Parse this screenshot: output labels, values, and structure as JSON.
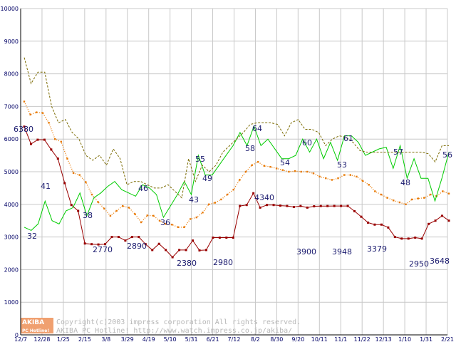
{
  "chart_data": {
    "type": "line",
    "title": "",
    "xlabel": "",
    "ylabel": "",
    "ylim": [
      0,
      10000
    ],
    "yticks": [
      0,
      1000,
      2000,
      3000,
      4000,
      5000,
      6000,
      7000,
      8000,
      9000,
      10000
    ],
    "x_tick_labels": [
      "12/7",
      "12/28",
      "1/25",
      "2/15",
      "3/8",
      "3/29",
      "4/19",
      "5/10",
      "5/31",
      "6/21",
      "7/12",
      "8/2",
      "8/30",
      "9/20",
      "10/11",
      "11/1",
      "11/22",
      "12/13",
      "1/10",
      "1/31",
      "2/21"
    ],
    "grid": true,
    "legend": "none",
    "series": [
      {
        "key": "lowest",
        "color": "#990000",
        "style": "solid-dot",
        "values": [
          6380,
          5850,
          5980,
          5980,
          5680,
          5400,
          4650,
          3980,
          3800,
          2800,
          2780,
          2770,
          2780,
          3000,
          3000,
          2890,
          3000,
          3000,
          2780,
          2600,
          2790,
          2600,
          2380,
          2600,
          2600,
          2890,
          2590,
          2600,
          2980,
          2980,
          2980,
          2980,
          3950,
          3980,
          4340,
          3900,
          3980,
          3980,
          3960,
          3950,
          3920,
          3950,
          3900,
          3940,
          3948,
          3948,
          3950,
          3950,
          3950,
          3790,
          3620,
          3440,
          3379,
          3379,
          3290,
          3000,
          2950,
          2950,
          2980,
          2950,
          3400,
          3500,
          3648,
          3500
        ]
      },
      {
        "key": "average",
        "color": "#e87800",
        "style": "dotted-square",
        "values": [
          7150,
          6750,
          6820,
          6800,
          6500,
          6000,
          5920,
          5400,
          4960,
          4900,
          4680,
          4300,
          4070,
          3870,
          3650,
          3800,
          3950,
          3900,
          3700,
          3450,
          3660,
          3650,
          3500,
          3400,
          3380,
          3300,
          3300,
          3550,
          3600,
          3750,
          4000,
          4050,
          4150,
          4300,
          4450,
          4750,
          5000,
          5200,
          5300,
          5180,
          5150,
          5100,
          5050,
          5000,
          5020,
          5000,
          5000,
          4950,
          4850,
          4800,
          4750,
          4800,
          4900,
          4900,
          4850,
          4720,
          4600,
          4400,
          4300,
          4200,
          4120,
          4060,
          4000,
          4150,
          4180,
          4200,
          4300,
          4250,
          4400,
          4330
        ]
      },
      {
        "key": "count",
        "color": "#00cc00",
        "style": "solid",
        "values": [
          3300,
          3200,
          3400,
          4100,
          3500,
          3400,
          3800,
          3900,
          4350,
          3650,
          4200,
          4350,
          4550,
          4700,
          4450,
          4350,
          4250,
          4600,
          4500,
          4300,
          3600,
          3950,
          4300,
          4700,
          4300,
          5500,
          4900,
          4900,
          5200,
          5500,
          5800,
          6200,
          5800,
          6400,
          5800,
          6000,
          5700,
          5400,
          5400,
          5500,
          6000,
          5600,
          6000,
          5400,
          5900,
          5350,
          6100,
          6100,
          5900,
          5500,
          5600,
          5700,
          5750,
          5100,
          5800,
          4800,
          5400,
          4800,
          4800,
          4100,
          4800,
          5600
        ]
      },
      {
        "key": "highest",
        "color": "#7a6a00",
        "style": "dashed",
        "values": [
          8500,
          7700,
          8050,
          8050,
          7000,
          6500,
          6600,
          6200,
          6000,
          5500,
          5350,
          5500,
          5200,
          5700,
          5400,
          4600,
          4700,
          4700,
          4600,
          4500,
          4500,
          4600,
          4400,
          4200,
          5400,
          4700,
          5200,
          5000,
          5200,
          5600,
          5800,
          6000,
          6200,
          6450,
          6500,
          6500,
          6500,
          6450,
          6100,
          6500,
          6600,
          6300,
          6300,
          6200,
          5800,
          6000,
          6100,
          6050,
          5900,
          5650,
          5600,
          5600,
          5600,
          5600,
          5600,
          5600,
          5600,
          5600,
          5600,
          5550,
          5300,
          5800,
          5800
        ]
      }
    ],
    "annotations": [
      {
        "text": "6380",
        "color": "#1a1a6e"
      },
      {
        "text": "41",
        "color": "#1a1a6e"
      },
      {
        "text": "32",
        "color": "#1a1a6e"
      },
      {
        "text": "38",
        "color": "#1a1a6e"
      },
      {
        "text": "2770",
        "color": "#1a1a6e"
      },
      {
        "text": "2890",
        "color": "#1a1a6e"
      },
      {
        "text": "46",
        "color": "#1a1a6e"
      },
      {
        "text": "36",
        "color": "#1a1a6e"
      },
      {
        "text": "2380",
        "color": "#1a1a6e"
      },
      {
        "text": "43",
        "color": "#1a1a6e"
      },
      {
        "text": "55",
        "color": "#1a1a6e"
      },
      {
        "text": "49",
        "color": "#1a1a6e"
      },
      {
        "text": "2980",
        "color": "#1a1a6e"
      },
      {
        "text": "58",
        "color": "#1a1a6e"
      },
      {
        "text": "64",
        "color": "#1a1a6e"
      },
      {
        "text": "4340",
        "color": "#1a1a6e"
      },
      {
        "text": "54",
        "color": "#1a1a6e"
      },
      {
        "text": "3900",
        "color": "#1a1a6e"
      },
      {
        "text": "60",
        "color": "#1a1a6e"
      },
      {
        "text": "3948",
        "color": "#1a1a6e"
      },
      {
        "text": "53",
        "color": "#1a1a6e"
      },
      {
        "text": "61",
        "color": "#1a1a6e"
      },
      {
        "text": "3379",
        "color": "#1a1a6e"
      },
      {
        "text": "57",
        "color": "#1a1a6e"
      },
      {
        "text": "48",
        "color": "#1a1a6e"
      },
      {
        "text": "2950",
        "color": "#1a1a6e"
      },
      {
        "text": "3648",
        "color": "#1a1a6e"
      },
      {
        "text": "56",
        "color": "#1a1a6e"
      }
    ]
  },
  "watermark": {
    "logo_top": "AKIBA",
    "logo_bottom": "PC Hotline!",
    "line1": "Copyright(c)2003 impress corporation All rights reserved.",
    "line2": "AKIBA PC Hotline! http://www.watch.impress.co.jp/akiba/"
  },
  "colors": {
    "grid": "#c8c8c8",
    "axis": "#000000",
    "tick_text": "#000066",
    "logo_bg": "#f0a070"
  }
}
